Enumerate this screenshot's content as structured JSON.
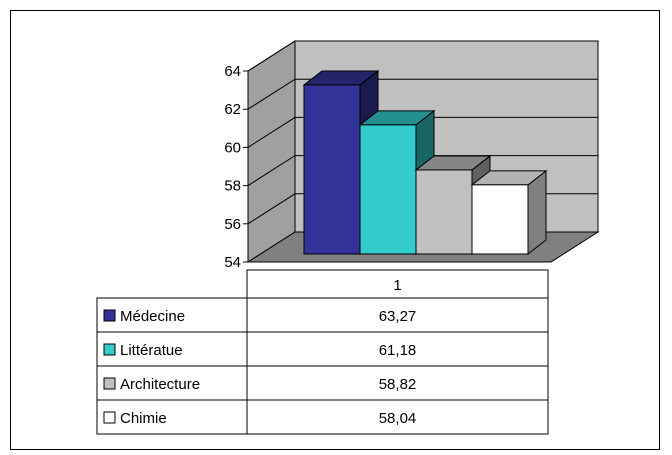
{
  "chart_data": {
    "type": "bar",
    "style": "3d-clustered-column-with-data-table",
    "categories": [
      "1"
    ],
    "ylim": [
      54,
      64
    ],
    "yticks": [
      54,
      56,
      58,
      60,
      62,
      64
    ],
    "ytick_labels": [
      "54",
      "56",
      "58",
      "60",
      "62",
      "64"
    ],
    "grid": true,
    "legend": "data-table",
    "series": [
      {
        "name": "Médecine",
        "values": [
          63.27
        ],
        "value_label": "63,27",
        "color": "#333399"
      },
      {
        "name": "Littératue",
        "values": [
          61.18
        ],
        "value_label": "61,18",
        "color": "#33CCCC"
      },
      {
        "name": "Architecture",
        "values": [
          58.82
        ],
        "value_label": "58,82",
        "color": "#C0C0C0"
      },
      {
        "name": "Chimie",
        "values": [
          58.04
        ],
        "value_label": "58,04",
        "color": "#FFFFFF"
      }
    ]
  }
}
